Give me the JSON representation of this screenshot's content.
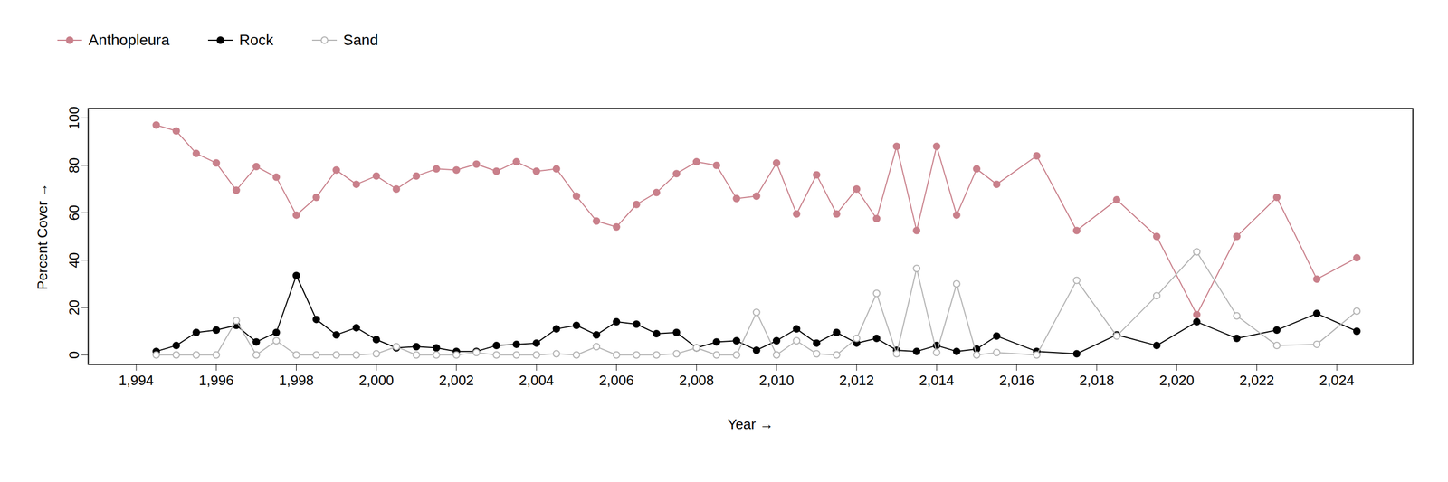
{
  "chart_data": {
    "type": "line",
    "x_label": "Year",
    "y_label": "Percent Cover",
    "x": [
      1994.5,
      1995,
      1995.5,
      1996,
      1996.5,
      1997,
      1997.5,
      1998,
      1998.5,
      1999,
      1999.5,
      2000,
      2000.5,
      2001,
      2001.5,
      2002,
      2002.5,
      2003,
      2003.5,
      2004,
      2004.5,
      2005,
      2005.5,
      2006,
      2006.5,
      2007,
      2007.5,
      2008,
      2008.5,
      2009,
      2009.5,
      2010,
      2010.5,
      2011,
      2011.5,
      2012,
      2012.5,
      2013,
      2013.5,
      2014,
      2014.5,
      2015,
      2015.5,
      2016.5,
      2017.5,
      2018.5,
      2019.5,
      2020.5,
      2021.5,
      2022.5,
      2023.5,
      2024.5
    ],
    "series": [
      {
        "name": "Anthopleura",
        "color": "#c9808b",
        "marker": "circle",
        "values": [
          97,
          94.5,
          85,
          81,
          69.5,
          79.5,
          75,
          59,
          66.5,
          78,
          72,
          75.5,
          70,
          75.5,
          78.5,
          78,
          80.5,
          77.5,
          81.5,
          77.5,
          78.5,
          67,
          56.5,
          54,
          63.5,
          68.5,
          76.5,
          81.5,
          80,
          66,
          67,
          81,
          59.5,
          76,
          59.5,
          70,
          57.5,
          88,
          52.5,
          88,
          59,
          78.5,
          72,
          84,
          52.5,
          65.5,
          50,
          17,
          50,
          66.5,
          32,
          41
        ]
      },
      {
        "name": "Rock",
        "color": "#000000",
        "marker": "circle",
        "values": [
          1.5,
          4,
          9.5,
          10.5,
          12.5,
          5.5,
          9.5,
          33.5,
          15,
          8.5,
          11.5,
          6.5,
          3,
          3.5,
          3,
          1.5,
          1.5,
          4,
          4.5,
          5,
          11,
          12.5,
          8.5,
          14,
          13,
          9,
          9.5,
          3,
          5.5,
          6,
          2,
          6,
          11,
          5,
          9.5,
          5,
          7,
          2,
          1.5,
          4,
          1.5,
          2.5,
          8,
          1.5,
          0.5,
          8.5,
          4,
          14,
          7,
          10.5,
          17.5,
          10
        ]
      },
      {
        "name": "Sand",
        "color": "#b3b3b3",
        "marker": "circle-open",
        "values": [
          0,
          0,
          0,
          0,
          14.5,
          0,
          6,
          0,
          0,
          0,
          0,
          0.5,
          3.5,
          0,
          0,
          0,
          1,
          0,
          0,
          0,
          0.5,
          0,
          3.5,
          0,
          0,
          0,
          0.5,
          3,
          0,
          0,
          18,
          0,
          6,
          0.5,
          0,
          7,
          26,
          0.5,
          36.5,
          1,
          30,
          0,
          1,
          0,
          31.5,
          8,
          25,
          43.5,
          16.5,
          4,
          4.5,
          18.5
        ]
      }
    ],
    "xlim": [
      1992.8,
      2025.9
    ],
    "xticks": [
      1994,
      1996,
      1998,
      2000,
      2002,
      2004,
      2006,
      2008,
      2010,
      2012,
      2014,
      2016,
      2018,
      2020,
      2022,
      2024
    ],
    "ylim": [
      -4,
      104
    ],
    "yticks": [
      0,
      20,
      40,
      60,
      80,
      100
    ],
    "legend": "top-left"
  }
}
